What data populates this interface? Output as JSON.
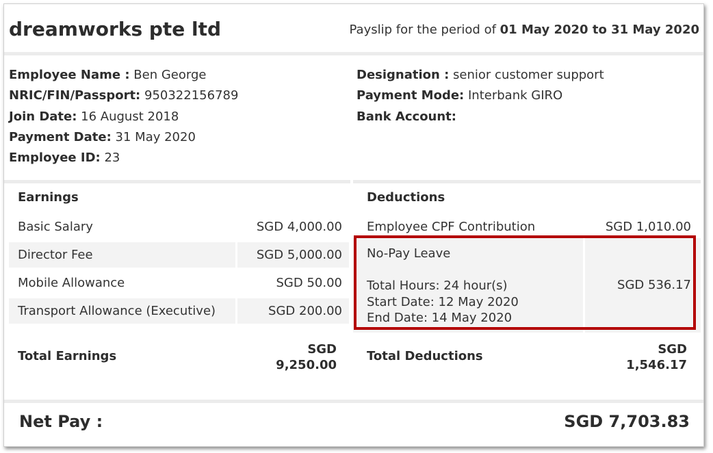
{
  "company": "dreamworks pte ltd",
  "period": {
    "prefix": "Payslip for the period of",
    "range": "01 May 2020 to 31 May 2020"
  },
  "employee": {
    "name_label": "Employee Name :",
    "name": "Ben George",
    "nric_label": "NRIC/FIN/Passport:",
    "nric": "950322156789",
    "join_label": "Join Date:",
    "join": "16 August 2018",
    "paydate_label": "Payment Date:",
    "paydate": "31 May 2020",
    "id_label": "Employee ID:",
    "id": "23",
    "designation_label": "Designation :",
    "designation": "senior customer support",
    "mode_label": "Payment Mode:",
    "mode": "Interbank GIRO",
    "bank_label": "Bank Account:",
    "bank": ""
  },
  "earnings": {
    "title": "Earnings",
    "items": [
      {
        "label": "Basic Salary",
        "amount": "SGD 4,000.00"
      },
      {
        "label": "Director Fee",
        "amount": "SGD 5,000.00"
      },
      {
        "label": "Mobile Allowance",
        "amount": "SGD 50.00"
      },
      {
        "label": "Transport Allowance (Executive)",
        "amount": "SGD 200.00"
      }
    ],
    "total_label": "Total Earnings",
    "total_currency": "SGD",
    "total_value": "9,250.00"
  },
  "deductions": {
    "title": "Deductions",
    "cpf": {
      "label": "Employee CPF Contribution",
      "amount": "SGD 1,010.00"
    },
    "no_pay_leave": {
      "label": "No-Pay Leave",
      "hours": "Total Hours: 24 hour(s)",
      "start": "Start Date: 12 May 2020",
      "end": "End Date: 14 May 2020",
      "amount": "SGD 536.17"
    },
    "total_label": "Total Deductions",
    "total_currency": "SGD",
    "total_value": "1,546.17"
  },
  "net_pay": {
    "label": "Net Pay :",
    "value": "SGD 7,703.83"
  },
  "colors": {
    "highlight_border": "#b30000",
    "row_shade": "#f3f3f3",
    "separator": "#ececec"
  }
}
